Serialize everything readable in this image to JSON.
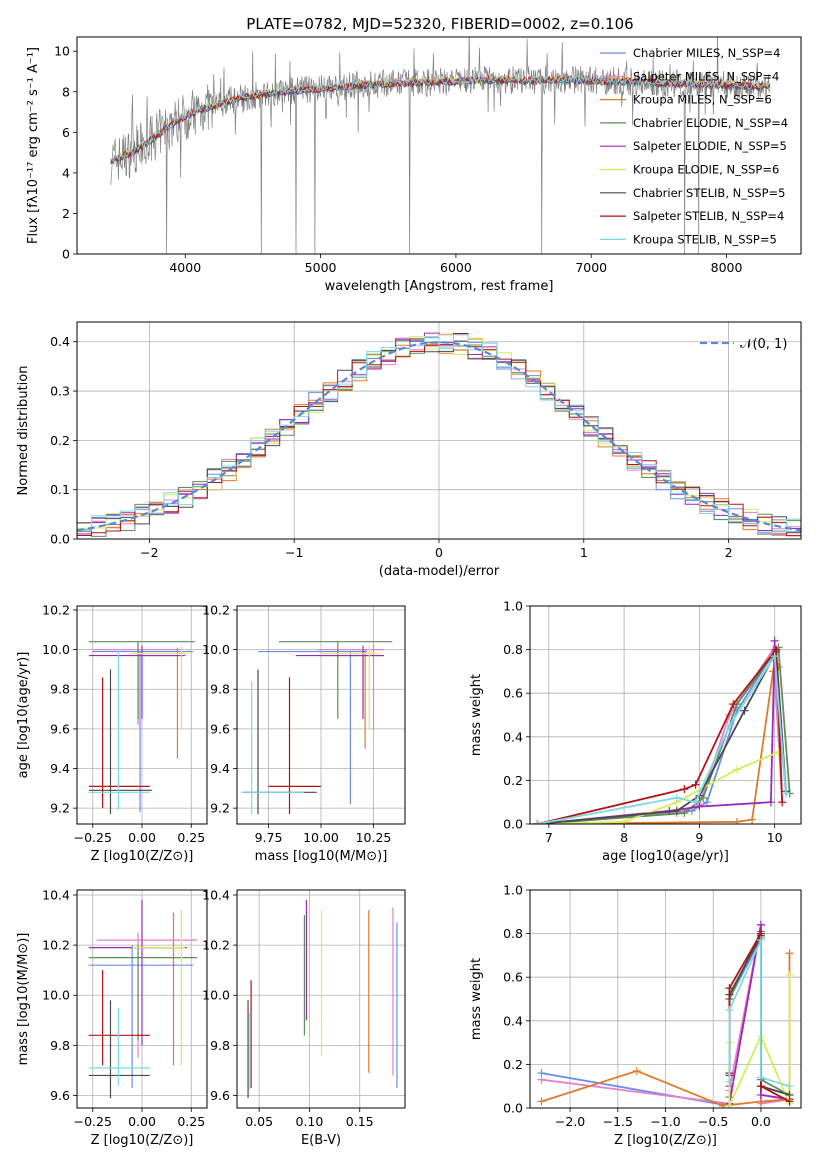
{
  "figure_title": "PLATE=0782, MJD=52320, FIBERID=0002, z=0.106",
  "colors": {
    "models": [
      "#6a8ee8",
      "#e57fcf",
      "#e07b28",
      "#5e8e5a",
      "#9a2ab8",
      "#d6ec5a",
      "#4a4a4a",
      "#b01414",
      "#7fd8e6"
    ],
    "data": "#808080",
    "normal": "#5b87d8",
    "grid": "#b0b0b0"
  },
  "chart_data": [
    {
      "id": "spectrum",
      "type": "line",
      "xlabel": "wavelength [Angstrom, rest frame]",
      "ylabel": "Flux [fλ10⁻¹⁷ erg cm⁻² s⁻¹ A⁻¹]",
      "xlim": [
        3200,
        8550
      ],
      "ylim": [
        0,
        10.7
      ],
      "xticks": [
        "4000",
        "5000",
        "6000",
        "7000",
        "8000"
      ],
      "yticks": [
        "0",
        "2",
        "4",
        "6",
        "8",
        "10"
      ],
      "grid": false,
      "legend_position": "upper-right",
      "legend": [
        "Chabrier MILES, N_SSP=4",
        "Salpeter MILES, N_SSP=4",
        "Kroupa MILES, N_SSP=6",
        "Chabrier ELODIE, N_SSP=4",
        "Salpeter ELODIE, N_SSP=5",
        "Kroupa ELODIE, N_SSP=6",
        "Chabrier STELIB, N_SSP=5",
        "Salpeter STELIB, N_SSP=4",
        "Kroupa STELIB, N_SSP=5"
      ],
      "continuum": {
        "x": [
          3450,
          3500,
          3600,
          3700,
          3800,
          3900,
          4000,
          4100,
          4200,
          4300,
          4400,
          4500,
          4700,
          4900,
          5100,
          5300,
          5500,
          5700,
          5900,
          6100,
          6300,
          6500,
          6700,
          6900,
          7100,
          7300,
          7500,
          7700,
          7900,
          8100,
          8300
        ],
        "y": [
          4.6,
          4.7,
          5.0,
          5.4,
          5.9,
          6.4,
          6.8,
          7.1,
          7.3,
          7.5,
          7.7,
          7.8,
          8.0,
          8.1,
          8.2,
          8.35,
          8.4,
          8.45,
          8.5,
          8.55,
          8.6,
          8.55,
          8.6,
          8.6,
          8.55,
          8.5,
          8.45,
          8.4,
          8.35,
          8.3,
          8.25
        ]
      }
    },
    {
      "id": "residual-histogram",
      "type": "line",
      "xlabel": "(data-model)/error",
      "ylabel": "Normed distribution",
      "xlim": [
        -2.5,
        2.5
      ],
      "ylim": [
        0,
        0.44
      ],
      "xticks": [
        "−2",
        "−1",
        "0",
        "1",
        "2"
      ],
      "yticks": [
        "0.0",
        "0.1",
        "0.2",
        "0.3",
        "0.4"
      ],
      "grid": true,
      "legend": [
        "𝒩(0, 1)"
      ],
      "legend_position": "upper-right",
      "bin_width": 0.1
    },
    {
      "id": "age-vs-metallicity",
      "type": "scatter",
      "xlabel": "Z [log10(Z/Z⊙)]",
      "ylabel": "age [log10(age/yr)]",
      "xlim": [
        -0.33,
        0.33
      ],
      "ylim": [
        9.12,
        10.22
      ],
      "xticks": [
        "−0.25",
        "0.00",
        "0.25"
      ],
      "yticks": [
        "9.2",
        "9.4",
        "9.6",
        "9.8",
        "10.0",
        "10.2"
      ],
      "grid": true,
      "points": [
        {
          "x": -0.01,
          "y": 9.99,
          "xe": [
            -0.25,
            0.26
          ],
          "ye": [
            9.18,
            9.99
          ]
        },
        {
          "x": -0.02,
          "y": 10.0,
          "xe": [
            -0.25,
            0.2
          ],
          "ye": [
            9.62,
            10.03
          ]
        },
        {
          "x": 0.18,
          "y": 9.97,
          "xe": [
            -0.04,
            0.2
          ],
          "ye": [
            9.45,
            10.01
          ]
        },
        {
          "x": -0.02,
          "y": 10.04,
          "xe": [
            -0.27,
            0.27
          ],
          "ye": [
            9.65,
            10.04
          ]
        },
        {
          "x": 0.0,
          "y": 9.97,
          "xe": [
            -0.27,
            0.22
          ],
          "ye": [
            9.65,
            10.02
          ]
        },
        {
          "x": 0.2,
          "y": 9.98,
          "xe": [
            -0.06,
            0.23
          ],
          "ye": [
            9.6,
            10.02
          ]
        },
        {
          "x": -0.16,
          "y": 9.29,
          "xe": [
            -0.27,
            0.05
          ],
          "ye": [
            9.17,
            9.9
          ]
        },
        {
          "x": -0.2,
          "y": 9.31,
          "xe": [
            -0.27,
            0.04
          ],
          "ye": [
            9.2,
            9.86
          ]
        },
        {
          "x": -0.12,
          "y": 9.28,
          "xe": [
            -0.27,
            0.04
          ],
          "ye": [
            9.19,
            9.99
          ]
        }
      ]
    },
    {
      "id": "age-vs-mass",
      "type": "scatter",
      "xlabel": "mass [log10(M/M⊙)]",
      "ylabel": "",
      "xlim": [
        9.6,
        10.4
      ],
      "ylim": [
        9.12,
        10.22
      ],
      "xticks": [
        "9.75",
        "10.00",
        "10.25"
      ],
      "yticks": [
        "9.2",
        "9.4",
        "9.6",
        "9.8",
        "10.0",
        "10.2"
      ],
      "grid": true,
      "points": [
        {
          "x": 10.14,
          "y": 9.99,
          "xe": [
            9.7,
            10.22
          ],
          "ye": [
            9.22,
            9.99
          ]
        },
        {
          "x": 10.25,
          "y": 10.0,
          "xe": [
            9.98,
            10.3
          ],
          "ye": [
            9.6,
            10.03
          ]
        },
        {
          "x": 10.21,
          "y": 9.97,
          "xe": [
            10.0,
            10.3
          ],
          "ye": [
            9.5,
            10.0
          ]
        },
        {
          "x": 10.08,
          "y": 10.04,
          "xe": [
            9.8,
            10.34
          ],
          "ye": [
            9.65,
            10.04
          ]
        },
        {
          "x": 10.2,
          "y": 9.97,
          "xe": [
            9.88,
            10.3
          ],
          "ye": [
            9.65,
            10.02
          ]
        },
        {
          "x": 10.23,
          "y": 9.98,
          "xe": [
            10.0,
            10.28
          ],
          "ye": [
            9.6,
            10.02
          ]
        },
        {
          "x": 9.7,
          "y": 9.28,
          "xe": [
            9.63,
            9.98
          ],
          "ye": [
            9.17,
            9.9
          ]
        },
        {
          "x": 9.85,
          "y": 9.31,
          "xe": [
            9.75,
            10.0
          ],
          "ye": [
            9.17,
            9.86
          ]
        },
        {
          "x": 9.67,
          "y": 9.28,
          "xe": [
            9.62,
            9.92
          ],
          "ye": [
            9.17,
            9.84
          ]
        }
      ]
    },
    {
      "id": "mass-weight-vs-age",
      "type": "line",
      "xlabel": "age [log10(age/yr)]",
      "ylabel": "mass weight",
      "xlim": [
        6.75,
        10.35
      ],
      "ylim": [
        0,
        1.0
      ],
      "xticks": [
        "7",
        "8",
        "9",
        "10"
      ],
      "yticks": [
        "0.0",
        "0.2",
        "0.4",
        "0.6",
        "0.8",
        "1.0"
      ],
      "grid": true,
      "series": [
        {
          "x": [
            6.85,
            8.9,
            9.1,
            9.5,
            9.98,
            10.15
          ],
          "y": [
            0.0,
            0.06,
            0.1,
            0.52,
            0.78,
            0.14
          ]
        },
        {
          "x": [
            6.85,
            8.7,
            9.0,
            9.4,
            9.98,
            10.1
          ],
          "y": [
            0.0,
            0.05,
            0.09,
            0.5,
            0.8,
            0.1
          ]
        },
        {
          "x": [
            6.85,
            9.5,
            9.7,
            9.98,
            10.05
          ],
          "y": [
            0.0,
            0.01,
            0.02,
            0.7,
            0.72
          ]
        },
        {
          "x": [
            6.85,
            8.8,
            9.05,
            9.5,
            10.05,
            10.2
          ],
          "y": [
            0.0,
            0.05,
            0.12,
            0.55,
            0.81,
            0.14
          ]
        },
        {
          "x": [
            6.85,
            8.6,
            9.0,
            9.95,
            10.0
          ],
          "y": [
            0.0,
            0.06,
            0.08,
            0.1,
            0.84
          ]
        },
        {
          "x": [
            6.85,
            8.0,
            8.7,
            9.5,
            10.05
          ],
          "y": [
            0.0,
            0.01,
            0.1,
            0.25,
            0.33
          ]
        },
        {
          "x": [
            6.85,
            8.7,
            9.0,
            9.6,
            10.02,
            10.15
          ],
          "y": [
            0.0,
            0.06,
            0.13,
            0.52,
            0.79,
            0.15
          ]
        },
        {
          "x": [
            6.85,
            8.8,
            8.95,
            9.45,
            10.02,
            10.1
          ],
          "y": [
            0.0,
            0.16,
            0.18,
            0.55,
            0.8,
            0.1
          ]
        },
        {
          "x": [
            6.85,
            8.7,
            8.95,
            9.4,
            10.0,
            10.15
          ],
          "y": [
            0.0,
            0.12,
            0.1,
            0.45,
            0.77,
            0.14
          ]
        }
      ]
    },
    {
      "id": "mass-vs-metallicity",
      "type": "scatter",
      "xlabel": "Z [log10(Z/Z⊙)]",
      "ylabel": "mass [log10(M/M⊙)]",
      "xlim": [
        -0.33,
        0.33
      ],
      "ylim": [
        9.55,
        10.42
      ],
      "xticks": [
        "−0.25",
        "0.00",
        "0.25"
      ],
      "yticks": [
        "9.6",
        "9.8",
        "10.0",
        "10.2",
        "10.4"
      ],
      "grid": true,
      "points": [
        {
          "x": -0.05,
          "y": 10.12,
          "xe": [
            -0.27,
            0.26
          ],
          "ye": [
            9.63,
            10.2
          ]
        },
        {
          "x": -0.02,
          "y": 10.22,
          "xe": [
            -0.23,
            0.28
          ],
          "ye": [
            9.75,
            10.25
          ]
        },
        {
          "x": 0.16,
          "y": 10.19,
          "xe": [
            -0.04,
            0.22
          ],
          "ye": [
            9.72,
            10.33
          ]
        },
        {
          "x": -0.02,
          "y": 10.15,
          "xe": [
            -0.27,
            0.28
          ],
          "ye": [
            9.82,
            10.2
          ]
        },
        {
          "x": 0.0,
          "y": 10.19,
          "xe": [
            -0.27,
            0.23
          ],
          "ye": [
            9.8,
            10.38
          ]
        },
        {
          "x": 0.2,
          "y": 10.19,
          "xe": [
            -0.05,
            0.22
          ],
          "ye": [
            9.72,
            10.34
          ]
        },
        {
          "x": -0.16,
          "y": 9.68,
          "xe": [
            -0.27,
            0.04
          ],
          "ye": [
            9.59,
            9.98
          ]
        },
        {
          "x": -0.2,
          "y": 9.84,
          "xe": [
            -0.27,
            0.04
          ],
          "ye": [
            9.72,
            10.1
          ]
        },
        {
          "x": -0.12,
          "y": 9.71,
          "xe": [
            -0.27,
            0.04
          ],
          "ye": [
            9.64,
            9.95
          ]
        }
      ]
    },
    {
      "id": "mass-vs-extinction",
      "type": "scatter",
      "xlabel": "E(B-V)",
      "ylabel": "",
      "xlim": [
        0.028,
        0.195
      ],
      "ylim": [
        9.55,
        10.42
      ],
      "xticks": [
        "0.05",
        "0.10",
        "0.15"
      ],
      "yticks": [
        "9.6",
        "9.8",
        "10.0",
        "10.2",
        "10.4"
      ],
      "grid": true,
      "points": [
        {
          "x": 0.187,
          "y": 10.12,
          "ye": [
            9.63,
            10.29
          ]
        },
        {
          "x": 0.183,
          "y": 10.22,
          "ye": [
            9.68,
            10.35
          ]
        },
        {
          "x": 0.159,
          "y": 10.19,
          "ye": [
            9.69,
            10.34
          ]
        },
        {
          "x": 0.095,
          "y": 10.15,
          "ye": [
            9.84,
            10.32
          ]
        },
        {
          "x": 0.097,
          "y": 10.19,
          "ye": [
            9.9,
            10.38
          ]
        },
        {
          "x": 0.112,
          "y": 10.19,
          "ye": [
            9.76,
            10.34
          ]
        },
        {
          "x": 0.039,
          "y": 9.68,
          "ye": [
            9.59,
            9.98
          ]
        },
        {
          "x": 0.042,
          "y": 9.84,
          "ye": [
            9.63,
            10.06
          ]
        },
        {
          "x": 0.04,
          "y": 9.71,
          "ye": [
            9.62,
            9.93
          ]
        }
      ]
    },
    {
      "id": "mass-weight-vs-metallicity",
      "type": "line",
      "xlabel": "Z [log10(Z/Z⊙)]",
      "ylabel": "mass weight",
      "xlim": [
        -2.42,
        0.42
      ],
      "ylim": [
        0,
        1.0
      ],
      "xticks": [
        "−2.0",
        "−1.5",
        "−1.0",
        "−0.5",
        "0.0"
      ],
      "yticks": [
        "0.0",
        "0.2",
        "0.4",
        "0.6",
        "0.8",
        "1.0"
      ],
      "grid": true,
      "series": [
        {
          "x": [
            -2.3,
            -0.33,
            -0.33,
            0.0,
            0.0,
            0.3
          ],
          "y": [
            0.16,
            0.01,
            0.5,
            0.78,
            0.1,
            0.06
          ]
        },
        {
          "x": [
            -2.3,
            -0.33,
            -0.33,
            0.0,
            0.0,
            0.3
          ],
          "y": [
            0.13,
            0.02,
            0.08,
            0.84,
            0.02,
            0.04
          ]
        },
        {
          "x": [
            -2.3,
            -1.3,
            -0.4,
            0.0,
            0.3,
            0.3
          ],
          "y": [
            0.03,
            0.17,
            0.01,
            0.03,
            0.04,
            0.71
          ]
        },
        {
          "x": [
            -0.33,
            -0.33,
            0.0,
            0.0,
            0.3
          ],
          "y": [
            0.05,
            0.5,
            0.81,
            0.13,
            0.06
          ]
        },
        {
          "x": [
            -0.33,
            -0.33,
            0.0,
            0.0,
            0.3
          ],
          "y": [
            0.1,
            0.02,
            0.84,
            0.06,
            0.04
          ]
        },
        {
          "x": [
            -0.33,
            -0.33,
            0.0,
            0.3,
            0.3
          ],
          "y": [
            0.3,
            0.01,
            0.33,
            0.02,
            0.61
          ]
        },
        {
          "x": [
            -0.33,
            -0.33,
            0.0,
            0.0,
            0.3
          ],
          "y": [
            0.15,
            0.52,
            0.79,
            0.1,
            0.06
          ]
        },
        {
          "x": [
            -0.33,
            -0.33,
            0.0,
            0.0,
            0.3
          ],
          "y": [
            0.16,
            0.55,
            0.8,
            0.1,
            0.03
          ]
        },
        {
          "x": [
            -0.33,
            -0.33,
            0.0,
            0.0,
            0.3
          ],
          "y": [
            0.12,
            0.45,
            0.77,
            0.14,
            0.1
          ]
        }
      ]
    }
  ]
}
